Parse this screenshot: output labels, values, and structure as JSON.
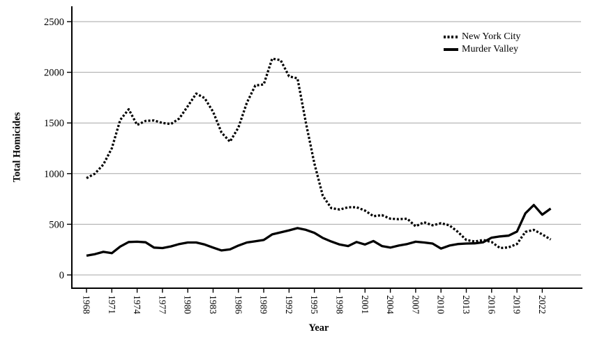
{
  "chart_data": {
    "type": "line",
    "title": "",
    "xlabel": "Year",
    "ylabel": "Total Homicides",
    "ylim": [
      0,
      2500
    ],
    "y_ticks": [
      0,
      500,
      1000,
      1500,
      2000,
      2500
    ],
    "x_ticks": [
      1968,
      1971,
      1974,
      1977,
      1980,
      1983,
      1986,
      1989,
      1992,
      1995,
      1998,
      2001,
      2004,
      2007,
      2010,
      2013,
      2016,
      2019,
      2022
    ],
    "grid": {
      "horizontal": true,
      "color": "#a6a6a6"
    },
    "legend_position": "inside-top-right",
    "x": [
      1968,
      1969,
      1970,
      1971,
      1972,
      1973,
      1974,
      1975,
      1976,
      1977,
      1978,
      1979,
      1980,
      1981,
      1982,
      1983,
      1984,
      1985,
      1986,
      1987,
      1988,
      1989,
      1990,
      1991,
      1992,
      1993,
      1994,
      1995,
      1996,
      1997,
      1998,
      1999,
      2000,
      2001,
      2002,
      2003,
      2004,
      2005,
      2006,
      2007,
      2008,
      2009,
      2010,
      2011,
      2012,
      2013,
      2014,
      2015,
      2016,
      2017,
      2018,
      2019,
      2020,
      2021,
      2022,
      2023
    ],
    "series": [
      {
        "name": "New York City",
        "line_style": "dotted",
        "color": "#000000",
        "values": [
          955,
          1000,
          1090,
          1250,
          1530,
          1635,
          1480,
          1520,
          1525,
          1500,
          1490,
          1545,
          1665,
          1790,
          1745,
          1610,
          1405,
          1315,
          1455,
          1700,
          1870,
          1880,
          2135,
          2120,
          1960,
          1940,
          1500,
          1100,
          780,
          660,
          645,
          668,
          668,
          635,
          580,
          590,
          555,
          550,
          555,
          480,
          520,
          490,
          510,
          490,
          425,
          345,
          330,
          345,
          325,
          265,
          272,
          305,
          425,
          445,
          400,
          350
        ]
      },
      {
        "name": "Murder Valley",
        "line_style": "solid",
        "color": "#000000",
        "values": [
          190,
          205,
          228,
          215,
          280,
          325,
          328,
          322,
          270,
          265,
          282,
          305,
          320,
          320,
          300,
          270,
          242,
          252,
          290,
          320,
          332,
          345,
          400,
          420,
          440,
          462,
          445,
          415,
          365,
          330,
          300,
          285,
          325,
          300,
          335,
          285,
          270,
          290,
          305,
          328,
          320,
          310,
          260,
          290,
          305,
          310,
          312,
          322,
          368,
          380,
          388,
          428,
          608,
          690,
          595,
          655
        ]
      }
    ]
  }
}
